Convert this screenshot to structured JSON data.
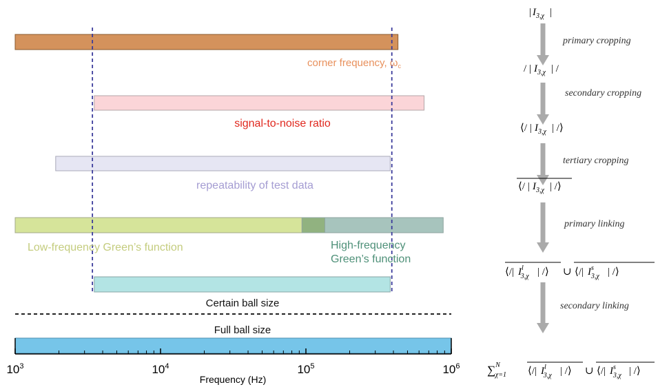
{
  "bars": [
    {
      "id": "corner-frequency",
      "from": 1000,
      "to": 430000,
      "fill": "#d4925c",
      "stroke": "#8a5a2e",
      "label": "corner frequency, ω",
      "label_sub": "c",
      "label_color": "#e8905c"
    },
    {
      "id": "signal-to-noise",
      "from": 3500,
      "to": 650000,
      "fill": "#fbd5d8",
      "stroke": "#b3a6a8",
      "label": "signal-to-noise ratio",
      "label_color": "#e0281e"
    },
    {
      "id": "repeatability",
      "from": 1900,
      "to": 380000,
      "fill": "#e6e6f3",
      "stroke": "#a9a9b8",
      "label": "repeatability of test data",
      "label_color": "#a49cd2"
    },
    {
      "id": "low-frequency-green",
      "from": 1000,
      "to": 94000,
      "fill": "#d6e49a",
      "stroke": "#a3a88a",
      "label": "Low-frequency Green’s function",
      "label_color": "#c4cc7e"
    },
    {
      "id": "high-frequency-green",
      "from": 135000,
      "to": 880000,
      "fill": "#a7c4bd",
      "stroke": "#8fa5a0",
      "label_lines": [
        "High-frequency",
        "Green’s function"
      ],
      "label_color": "#4e9078"
    },
    {
      "id": "certain-ball-size",
      "from": 3500,
      "to": 380000,
      "fill": "#b3e4e4",
      "stroke": "#8aa5a5",
      "label": "Certain ball size",
      "label_color": "#111111"
    },
    {
      "id": "full-ball-size",
      "from": 1000,
      "to": 1000000,
      "fill": "#76c5e9",
      "stroke": "#4f8fb0",
      "label": "Full ball size",
      "label_color": "#111111"
    }
  ],
  "overlap": {
    "from": 94000,
    "to": 135000,
    "fill": "#91b280"
  },
  "dashed_lines": [
    {
      "at": 3400,
      "color": "#3b3b9b"
    },
    {
      "at": 390000,
      "color": "#3b3b9b"
    }
  ],
  "axis": {
    "label": "Frequency (Hz)",
    "min": 1000,
    "max": 1000000,
    "ticks": [
      {
        "value": 1000,
        "base": "10",
        "exp": "3"
      },
      {
        "value": 10000,
        "base": "10",
        "exp": "4"
      },
      {
        "value": 100000,
        "base": "10",
        "exp": "5"
      },
      {
        "value": 1000000,
        "base": "10",
        "exp": "6"
      }
    ]
  },
  "flow": {
    "steps": [
      {
        "expr": "|I3,χ|",
        "arrow": "primary cropping"
      },
      {
        "expr": "/ |I3,χ| /",
        "arrow": "secondary cropping"
      },
      {
        "expr": "⟨/ |I3,χ| /⟩",
        "arrow": "tertiary cropping"
      },
      {
        "expr": "⟨/ |I3,χ| /⟩ overline",
        "arrow": "primary linking"
      },
      {
        "expr": "⟨/| I l 3,χ| /⟩ ∪ ⟨/| I s 3,χ| /⟩",
        "arrow": "secondary linking"
      },
      {
        "expr": "∑ N χ=1 ⟨/| I l 3,χ| /⟩ ∪ ⟨/| I s 3,χ| /⟩",
        "arrow": ""
      }
    ],
    "arrow_color": "#aaaaaa"
  }
}
